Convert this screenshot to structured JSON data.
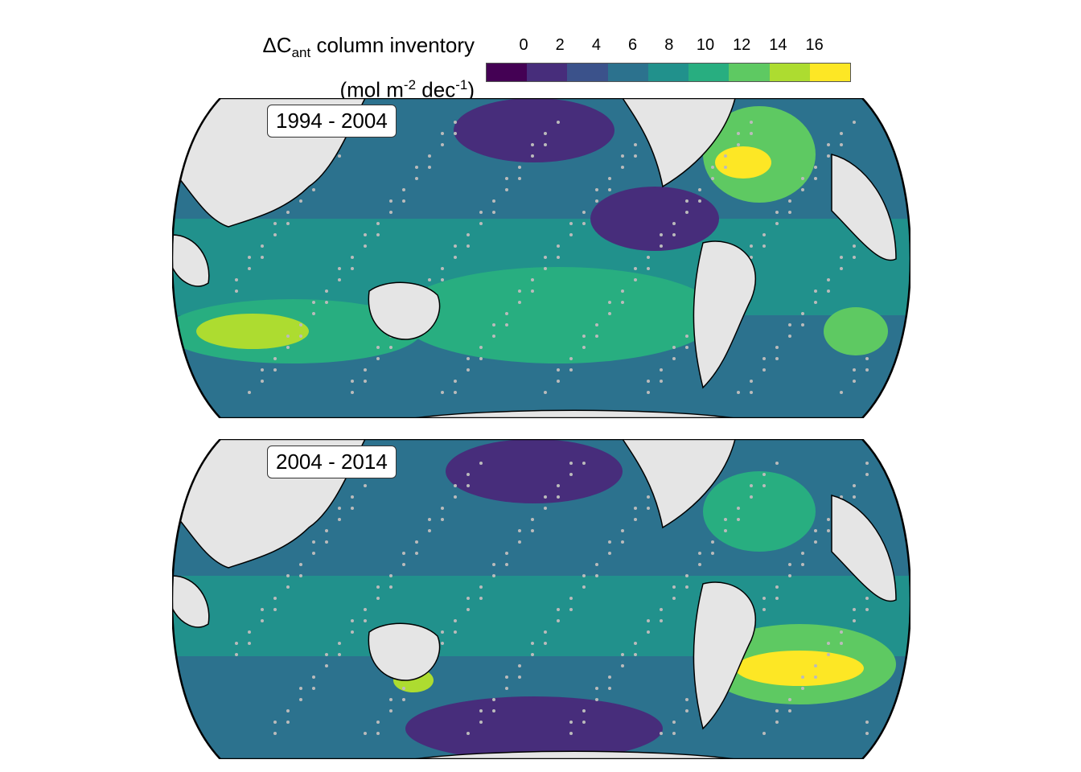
{
  "legend": {
    "title_symbol": "ΔC",
    "title_sub": "ant",
    "title_rest": " column inventory",
    "unit_open": "(mol m",
    "unit_exp1": "-2",
    "unit_mid": " dec",
    "unit_exp2": "-1",
    "unit_close": ")",
    "ticks": [
      "0",
      "2",
      "4",
      "6",
      "8",
      "10",
      "12",
      "14",
      "16"
    ],
    "colors": [
      "#440154",
      "#472d7b",
      "#3b528b",
      "#2c728e",
      "#21918c",
      "#28ae80",
      "#5ec962",
      "#addc30",
      "#fde725"
    ]
  },
  "panels": [
    {
      "label": "1994 - 2004"
    },
    {
      "label": "2004 - 2014"
    }
  ]
}
